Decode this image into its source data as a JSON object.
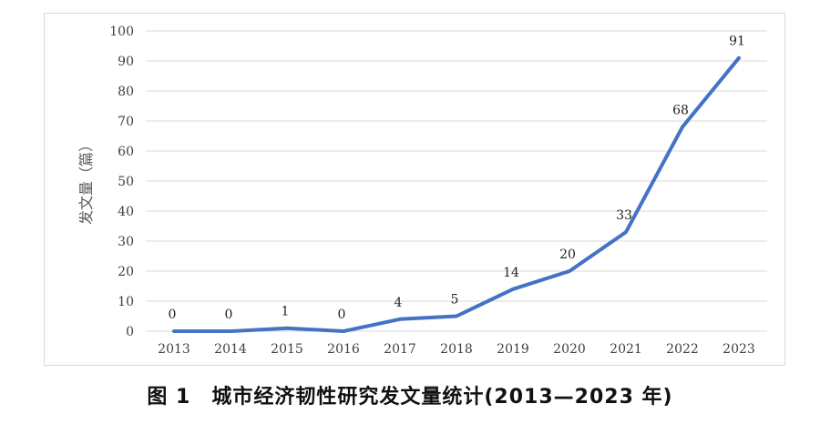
{
  "caption": "图 1　城市经济韧性研究发文量统计(2013—2023 年)",
  "chart_data": {
    "type": "line",
    "title": "",
    "xlabel": "",
    "ylabel": "发文量（篇）",
    "ylim": [
      0,
      100
    ],
    "yticks": [
      0,
      10,
      20,
      30,
      40,
      50,
      60,
      70,
      80,
      90,
      100
    ],
    "categories": [
      "2013",
      "2014",
      "2015",
      "2016",
      "2017",
      "2018",
      "2019",
      "2020",
      "2021",
      "2022",
      "2023"
    ],
    "series": [
      {
        "values": [
          0,
          0,
          1,
          0,
          4,
          5,
          14,
          20,
          33,
          68,
          91
        ]
      }
    ],
    "grid": true,
    "legend": "none",
    "line_color": "#4472c4",
    "grid_color": "#d9d9d9"
  }
}
